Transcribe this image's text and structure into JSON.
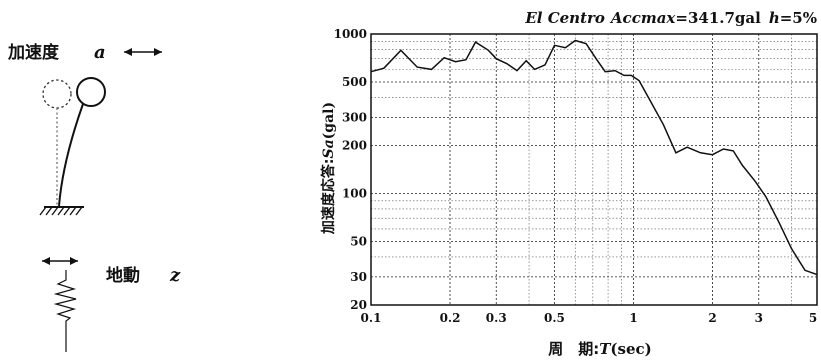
{
  "diagram": {
    "accel_label": "加速度",
    "accel_symbol": "a",
    "ground_label": "地動",
    "ground_symbol": "z"
  },
  "chart_data": {
    "type": "line",
    "title_parts": {
      "record": "El Centro",
      "accmax_name": "Accmax",
      "accmax_value": "=341.7gal",
      "damping_symbol": "h",
      "damping_value": "=5%"
    },
    "ylabel_jp": "加速度応答:",
    "ylabel_sym": "Sa",
    "ylabel_unit": "(gal)",
    "xlabel_jp": "周　期:",
    "xlabel_sym": "T",
    "xlabel_unit": "(sec)",
    "x_scale": "log",
    "y_scale": "log",
    "xlim": [
      0.1,
      5
    ],
    "ylim": [
      20,
      1000
    ],
    "grid": true,
    "x_ticks": [
      {
        "value": 0.1,
        "label": "0.1"
      },
      {
        "value": 0.2,
        "label": "0.2"
      },
      {
        "value": 0.3,
        "label": "0.3"
      },
      {
        "value": 0.5,
        "label": "0.5"
      },
      {
        "value": 1,
        "label": "1"
      },
      {
        "value": 2,
        "label": "2"
      },
      {
        "value": 3,
        "label": "3"
      },
      {
        "value": 5,
        "label": "5"
      }
    ],
    "y_ticks": [
      {
        "value": 20,
        "label": "20"
      },
      {
        "value": 30,
        "label": "30"
      },
      {
        "value": 50,
        "label": "50"
      },
      {
        "value": 100,
        "label": "100"
      },
      {
        "value": 200,
        "label": "200"
      },
      {
        "value": 300,
        "label": "300"
      },
      {
        "value": 500,
        "label": "500"
      },
      {
        "value": 1000,
        "label": "1000"
      }
    ],
    "series": [
      {
        "x": [
          0.1,
          0.112,
          0.13,
          0.15,
          0.17,
          0.19,
          0.21,
          0.23,
          0.25,
          0.28,
          0.3,
          0.33,
          0.36,
          0.39,
          0.42,
          0.46,
          0.5,
          0.55,
          0.6,
          0.66,
          0.72,
          0.78,
          0.85,
          0.92,
          0.98,
          1.05,
          1.15,
          1.3,
          1.45,
          1.6,
          1.8,
          2.0,
          2.2,
          2.4,
          2.6,
          2.9,
          3.2,
          3.6,
          4.0,
          4.5,
          5.0
        ],
        "y": [
          580,
          610,
          790,
          620,
          600,
          710,
          670,
          690,
          890,
          790,
          700,
          650,
          590,
          680,
          600,
          640,
          850,
          820,
          910,
          870,
          700,
          580,
          590,
          550,
          550,
          510,
          390,
          270,
          180,
          195,
          180,
          175,
          190,
          185,
          150,
          120,
          95,
          65,
          45,
          33,
          31
        ]
      }
    ]
  }
}
